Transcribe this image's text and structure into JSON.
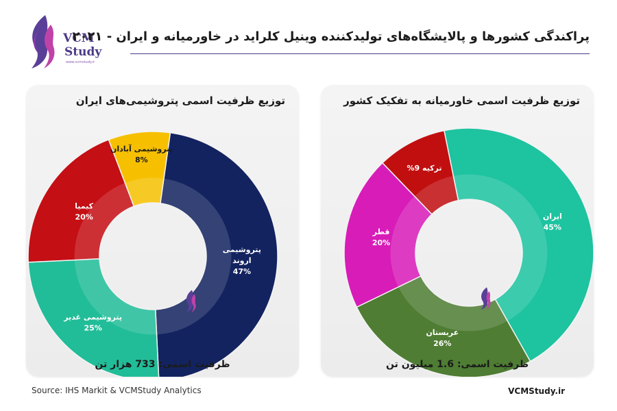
{
  "header": {
    "title": "پراکندگی کشورها و پالایشگاه‌های تولیدکننده وینیل کلراید در خاورمیانه و ایران - ۲۰۲۱",
    "logo_line1": "VCM",
    "logo_line2": "Study",
    "logo_url": "www.vcmstudy.ir",
    "accent": "#4b3a8c"
  },
  "footer": {
    "source": "Source: IHS Markit & VCMStudy Analytics",
    "site": "VCMStudy.ir"
  },
  "chart_data": [
    {
      "type": "pie",
      "style": "donut",
      "title": "توزیع ظرفیت اسمی پتروشیمی‌های ایران",
      "footer": "ظرفیت اسمی: 733 هزار تن",
      "slices": [
        {
          "name": "پتروشیمی اروند",
          "value": 47,
          "label": "47%",
          "color": "#13235f"
        },
        {
          "name": "پتروشیمی غدیر",
          "value": 25,
          "label": "25%",
          "color": "#21bd98"
        },
        {
          "name": "کیمیا",
          "value": 20,
          "label": "20%",
          "color": "#c40f14"
        },
        {
          "name": "پتروشیمی آبادان",
          "value": 8,
          "label": "8%",
          "color": "#f6c000"
        }
      ]
    },
    {
      "type": "pie",
      "style": "donut",
      "title": "توزیع ظرفیت اسمی خاورمیانه به تفکیک کشور",
      "footer": "ظرفیت اسمی: 1.6 میلیون تن",
      "slices": [
        {
          "name": "ایران",
          "value": 45,
          "label": "45%",
          "color": "#1ec3a0"
        },
        {
          "name": "عربستان",
          "value": 26,
          "label": "26%",
          "color": "#4e7d33"
        },
        {
          "name": "قطر",
          "value": 20,
          "label": "20%",
          "color": "#d81cb8"
        },
        {
          "name": "ترکیه",
          "value": 9,
          "label": "9%",
          "color": "#c10f10"
        }
      ]
    }
  ]
}
